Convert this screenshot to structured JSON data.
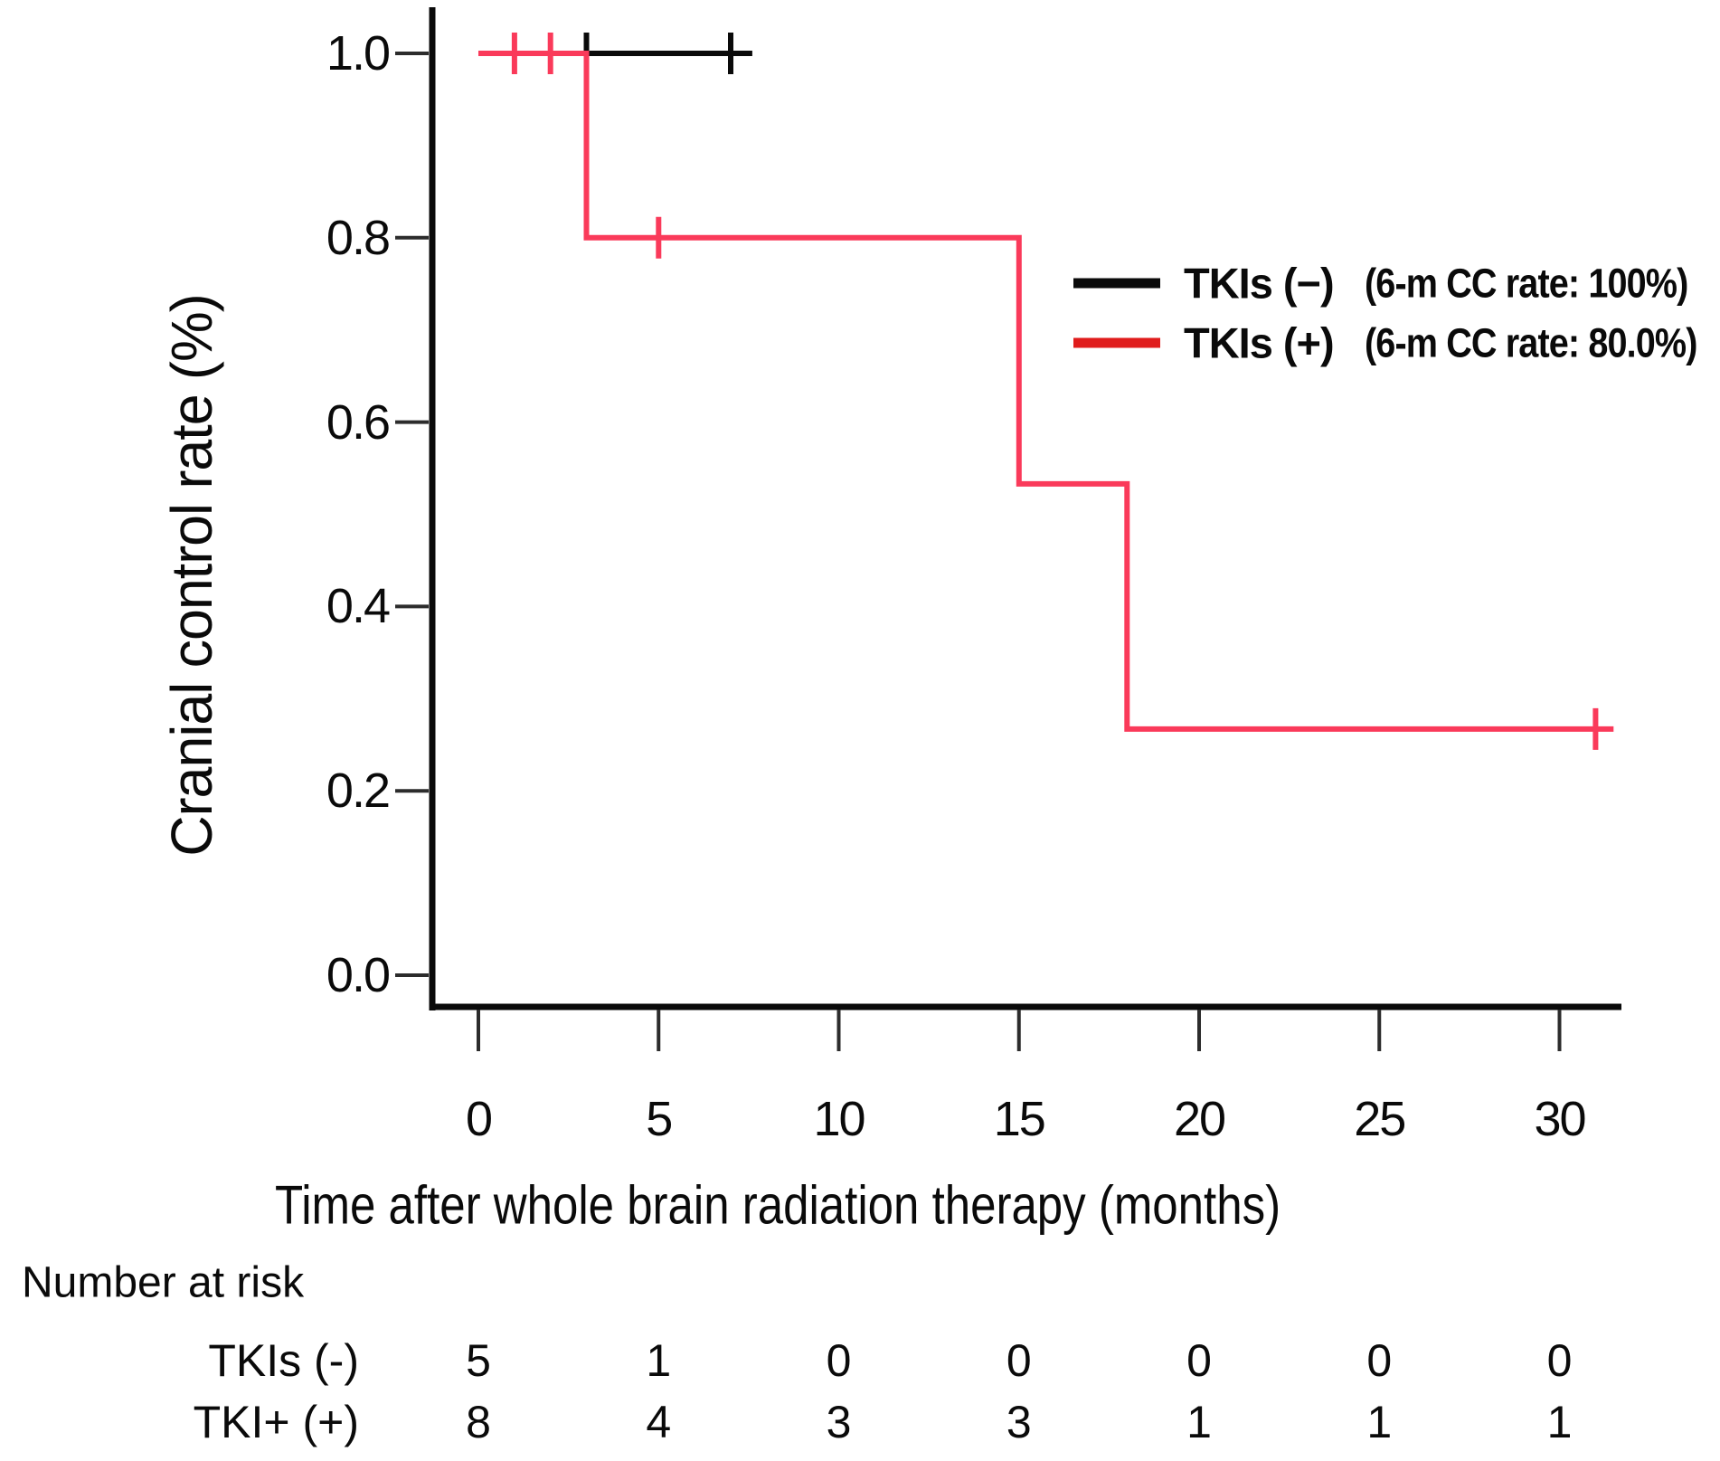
{
  "figure": {
    "y_axis_label": "Cranial control rate (%)",
    "x_axis_label": "Time after whole brain radiation therapy (months)"
  },
  "legend": {
    "position": "upper right",
    "items": [
      {
        "label": "TKIs (−)",
        "rate": "(6-m CC rate: 100%)",
        "color": "#0a0a0a"
      },
      {
        "label": "TKIs (+)",
        "rate": "(6-m CC rate: 80.0%)",
        "color": "#e01c1c"
      }
    ]
  },
  "chart_data": {
    "type": "line",
    "subtype": "kaplan-meier-step",
    "title": "",
    "xlabel": "Time after whole brain radiation therapy (months)",
    "ylabel": "Cranial control rate (%)",
    "xlim": [
      0,
      32
    ],
    "ylim": [
      0,
      1.0
    ],
    "xticks": [
      0,
      5,
      10,
      15,
      20,
      25,
      30
    ],
    "yticks": [
      "1.0",
      "0.8",
      "0.6",
      "0.4",
      "0.2",
      "0.0"
    ],
    "grid": false,
    "legend_position": "upper right",
    "series": [
      {
        "id": "tkis-negative",
        "name": "TKIs (−)",
        "color": "#0a0a0a",
        "rate_label": "(6-m CC rate: 100%)",
        "six_month_cc_rate_pct": 100,
        "points": [
          [
            0,
            1.0
          ],
          [
            7.6,
            1.0
          ]
        ],
        "censor_marks": [
          {
            "t": 3,
            "v": 1.0,
            "style": "upper-tick"
          },
          {
            "t": 7,
            "v": 1.0,
            "style": "cross"
          }
        ]
      },
      {
        "id": "tkis-positive",
        "name": "TKIs (+)",
        "color": "#fa3a5a",
        "rate_label": "(6-m CC rate: 80.0%)",
        "six_month_cc_rate_pct": 80.0,
        "points": [
          [
            0,
            1.0
          ],
          [
            3,
            1.0
          ],
          [
            3,
            0.8
          ],
          [
            15,
            0.8
          ],
          [
            15,
            0.533
          ],
          [
            18,
            0.533
          ],
          [
            18,
            0.267
          ],
          [
            31.5,
            0.267
          ]
        ],
        "censor_marks": [
          {
            "t": 1,
            "v": 1.0,
            "style": "cross"
          },
          {
            "t": 2,
            "v": 1.0,
            "style": "cross"
          },
          {
            "t": 5,
            "v": 0.8,
            "style": "cross"
          },
          {
            "t": 31,
            "v": 0.267,
            "style": "cross"
          }
        ]
      }
    ]
  },
  "risk_table": {
    "heading": "Number at risk",
    "times": [
      0,
      5,
      10,
      15,
      20,
      25,
      30
    ],
    "rows": [
      {
        "label": "TKIs (-)",
        "counts": [
          5,
          1,
          0,
          0,
          0,
          0,
          0
        ]
      },
      {
        "label": "TKI+ (+)",
        "counts": [
          8,
          4,
          3,
          3,
          1,
          1,
          1
        ]
      }
    ]
  }
}
